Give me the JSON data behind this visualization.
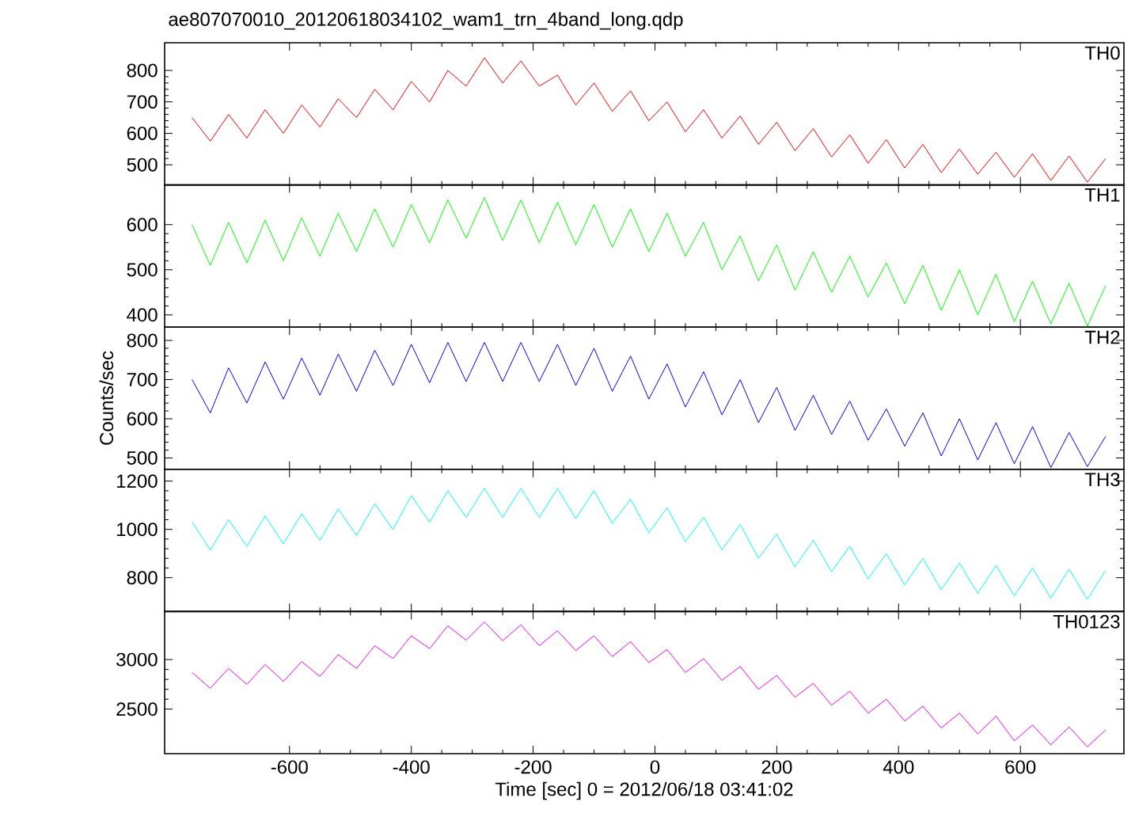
{
  "chart_data": [
    {
      "type": "line",
      "title": "ae807070010_20120618034102_wam1_trn_4band_long.qdp",
      "annotations": [
        "TH0"
      ],
      "xlim": [
        -805,
        770
      ],
      "xticks": [
        -600,
        -400,
        -200,
        0,
        200,
        400,
        600
      ],
      "ylim": [
        436,
        888
      ],
      "yticks": [
        500,
        600,
        700,
        800
      ],
      "tick_labels": "y",
      "x": [
        -760,
        -730,
        -700,
        -670,
        -640,
        -610,
        -580,
        -550,
        -520,
        -490,
        -460,
        -430,
        -400,
        -370,
        -340,
        -310,
        -280,
        -250,
        -220,
        -190,
        -160,
        -130,
        -100,
        -70,
        -40,
        -10,
        20,
        50,
        80,
        110,
        140,
        170,
        200,
        230,
        260,
        290,
        320,
        350,
        380,
        410,
        440,
        470,
        500,
        530,
        560,
        590,
        620,
        650,
        680,
        710,
        740
      ],
      "series": [
        {
          "color": "#ff0000",
          "values": [
            650,
            575,
            660,
            585,
            675,
            600,
            690,
            620,
            710,
            650,
            740,
            675,
            765,
            700,
            800,
            750,
            840,
            760,
            830,
            750,
            785,
            690,
            760,
            670,
            735,
            640,
            700,
            605,
            675,
            585,
            655,
            565,
            635,
            545,
            615,
            525,
            595,
            505,
            580,
            490,
            565,
            475,
            550,
            470,
            540,
            460,
            535,
            450,
            528,
            445,
            520
          ]
        }
      ]
    },
    {
      "type": "line",
      "annotations": [
        "TH1"
      ],
      "xlim": [
        -805,
        770
      ],
      "xticks": [
        -600,
        -400,
        -200,
        0,
        200,
        400,
        600
      ],
      "ylim": [
        373,
        688
      ],
      "yticks": [
        400,
        500,
        600
      ],
      "tick_labels": "y",
      "x": [
        -760,
        -730,
        -700,
        -670,
        -640,
        -610,
        -580,
        -550,
        -520,
        -490,
        -460,
        -430,
        -400,
        -370,
        -340,
        -310,
        -280,
        -250,
        -220,
        -190,
        -160,
        -130,
        -100,
        -70,
        -40,
        -10,
        20,
        50,
        80,
        110,
        140,
        170,
        200,
        230,
        260,
        290,
        320,
        350,
        380,
        410,
        440,
        470,
        500,
        530,
        560,
        590,
        620,
        650,
        680,
        710,
        740
      ],
      "series": [
        {
          "color": "#00ff00",
          "values": [
            600,
            510,
            605,
            515,
            610,
            520,
            615,
            530,
            625,
            540,
            635,
            550,
            645,
            560,
            655,
            570,
            660,
            565,
            655,
            560,
            650,
            555,
            645,
            550,
            635,
            540,
            625,
            530,
            605,
            500,
            575,
            475,
            555,
            455,
            540,
            450,
            530,
            440,
            515,
            425,
            510,
            410,
            500,
            400,
            490,
            385,
            475,
            380,
            470,
            375,
            465
          ]
        }
      ]
    },
    {
      "type": "line",
      "ylabel": "Counts/sec",
      "annotations": [
        "TH2"
      ],
      "xlim": [
        -805,
        770
      ],
      "xticks": [
        -600,
        -400,
        -200,
        0,
        200,
        400,
        600
      ],
      "ylim": [
        471,
        834
      ],
      "yticks": [
        500,
        600,
        700,
        800
      ],
      "tick_labels": "y",
      "x": [
        -760,
        -730,
        -700,
        -670,
        -640,
        -610,
        -580,
        -550,
        -520,
        -490,
        -460,
        -430,
        -400,
        -370,
        -340,
        -310,
        -280,
        -250,
        -220,
        -190,
        -160,
        -130,
        -100,
        -70,
        -40,
        -10,
        20,
        50,
        80,
        110,
        140,
        170,
        200,
        230,
        260,
        290,
        320,
        350,
        380,
        410,
        440,
        470,
        500,
        530,
        560,
        590,
        620,
        650,
        680,
        710,
        740
      ],
      "series": [
        {
          "color": "#0000ff",
          "values": [
            700,
            615,
            730,
            640,
            745,
            650,
            755,
            660,
            765,
            670,
            775,
            685,
            790,
            692,
            795,
            695,
            795,
            695,
            795,
            695,
            790,
            685,
            780,
            670,
            760,
            650,
            740,
            630,
            720,
            610,
            700,
            590,
            680,
            570,
            660,
            560,
            645,
            545,
            625,
            530,
            615,
            505,
            600,
            495,
            590,
            485,
            580,
            475,
            565,
            478,
            555
          ]
        }
      ]
    },
    {
      "type": "line",
      "annotations": [
        "TH3"
      ],
      "xlim": [
        -805,
        770
      ],
      "xticks": [
        -600,
        -400,
        -200,
        0,
        200,
        400,
        600
      ],
      "ylim": [
        660,
        1249
      ],
      "yticks": [
        800,
        1000,
        1200
      ],
      "tick_labels": "y",
      "x": [
        -760,
        -730,
        -700,
        -670,
        -640,
        -610,
        -580,
        -550,
        -520,
        -490,
        -460,
        -430,
        -400,
        -370,
        -340,
        -310,
        -280,
        -250,
        -220,
        -190,
        -160,
        -130,
        -100,
        -70,
        -40,
        -10,
        20,
        50,
        80,
        110,
        140,
        170,
        200,
        230,
        260,
        290,
        320,
        350,
        380,
        410,
        440,
        470,
        500,
        530,
        560,
        590,
        620,
        650,
        680,
        710,
        740
      ],
      "series": [
        {
          "color": "#00ffff",
          "values": [
            1030,
            915,
            1040,
            930,
            1055,
            940,
            1065,
            955,
            1085,
            975,
            1105,
            1000,
            1140,
            1030,
            1160,
            1050,
            1170,
            1050,
            1170,
            1050,
            1170,
            1045,
            1160,
            1025,
            1125,
            985,
            1090,
            950,
            1050,
            915,
            1020,
            880,
            980,
            845,
            955,
            825,
            930,
            795,
            900,
            770,
            880,
            750,
            860,
            735,
            850,
            725,
            840,
            715,
            835,
            710,
            830
          ]
        }
      ]
    },
    {
      "type": "line",
      "xlabel": "Time [sec] 0 = 2012/06/18 03:41:02",
      "annotations": [
        "TH0123"
      ],
      "xlim": [
        -805,
        770
      ],
      "xticks": [
        -600,
        -400,
        -200,
        0,
        200,
        400,
        600
      ],
      "ylim": [
        2051,
        3485
      ],
      "yticks": [
        2500,
        3000
      ],
      "x": [
        -760,
        -730,
        -700,
        -670,
        -640,
        -610,
        -580,
        -550,
        -520,
        -490,
        -460,
        -430,
        -400,
        -370,
        -340,
        -310,
        -280,
        -250,
        -220,
        -190,
        -160,
        -130,
        -100,
        -70,
        -40,
        -10,
        20,
        50,
        80,
        110,
        140,
        170,
        200,
        230,
        260,
        290,
        320,
        350,
        380,
        410,
        440,
        470,
        500,
        530,
        560,
        590,
        620,
        650,
        680,
        710,
        740
      ],
      "series": [
        {
          "color": "#ff00ff",
          "values": [
            2870,
            2710,
            2910,
            2750,
            2950,
            2780,
            2980,
            2830,
            3050,
            2910,
            3140,
            3010,
            3240,
            3110,
            3340,
            3195,
            3380,
            3190,
            3350,
            3140,
            3290,
            3090,
            3240,
            3030,
            3180,
            2970,
            3100,
            2870,
            3010,
            2790,
            2930,
            2700,
            2840,
            2620,
            2760,
            2540,
            2680,
            2460,
            2600,
            2380,
            2530,
            2310,
            2460,
            2250,
            2430,
            2180,
            2340,
            2140,
            2320,
            2120,
            2290
          ]
        }
      ]
    }
  ]
}
